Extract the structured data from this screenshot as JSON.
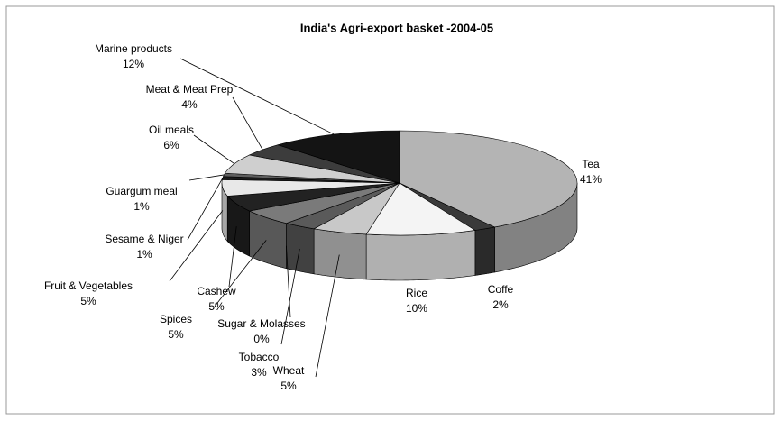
{
  "chart_data": {
    "type": "pie3d",
    "title": "India's Agri-export basket -2004-05",
    "categories": [
      "Tea",
      "Coffe",
      "Rice",
      "Wheat",
      "Tobacco",
      "Sugar & Molasses",
      "Spices",
      "Cashew",
      "Fruit & Vegetables",
      "Sesame & Niger",
      "Guargum meal",
      "Oil meals",
      "Meat & Meat Prep",
      "Marine products"
    ],
    "values": [
      41,
      2,
      10,
      5,
      3,
      0,
      5,
      5,
      5,
      1,
      1,
      6,
      4,
      12
    ],
    "value_labels": [
      "41%",
      "2%",
      "10%",
      "5%",
      "3%",
      "0%",
      "5%",
      "5%",
      "5%",
      "1%",
      "1%",
      "6%",
      "4%",
      "12%"
    ],
    "colors": [
      "#b4b4b4",
      "#3a3a3a",
      "#f4f4f4",
      "#c8c8c8",
      "#5a5a5a",
      "#111111",
      "#7a7a7a",
      "#222222",
      "#e8e8e8",
      "#1a1a1a",
      "#5e5e5e",
      "#cfcfcf",
      "#3c3c3c",
      "#141414"
    ]
  }
}
